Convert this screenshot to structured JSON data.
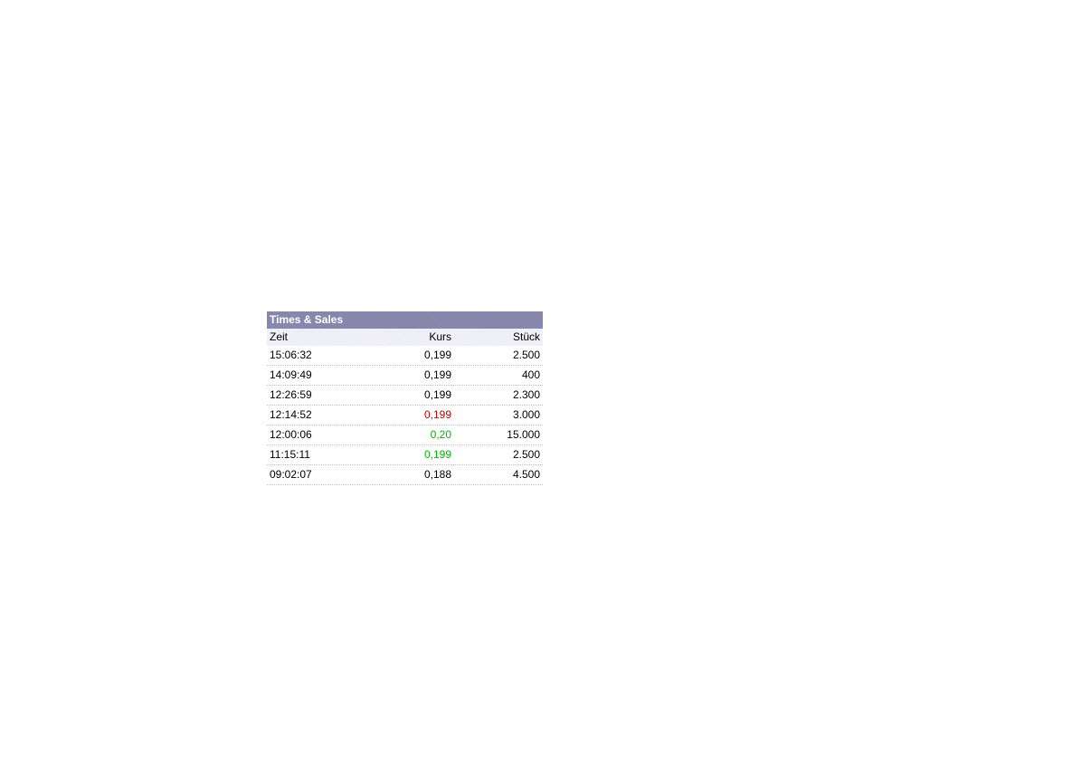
{
  "widget": {
    "title": "Times & Sales",
    "title_bg": "#8080a8",
    "header_bg": "#e8e8f4",
    "columns": [
      "Zeit",
      "Kurs",
      "Stück"
    ],
    "rows": [
      {
        "zeit": "15:06:32",
        "kurs": "0,199",
        "stueck": "2.500",
        "kurs_color": "#000000"
      },
      {
        "zeit": "14:09:49",
        "kurs": "0,199",
        "stueck": "400",
        "kurs_color": "#000000"
      },
      {
        "zeit": "12:26:59",
        "kurs": "0,199",
        "stueck": "2.300",
        "kurs_color": "#000000"
      },
      {
        "zeit": "12:14:52",
        "kurs": "0,199",
        "stueck": "3.000",
        "kurs_color": "#cc0000"
      },
      {
        "zeit": "12:00:06",
        "kurs": "0,20",
        "stueck": "15.000",
        "kurs_color": "#00bb00"
      },
      {
        "zeit": "11:15:11",
        "kurs": "0,199",
        "stueck": "2.500",
        "kurs_color": "#00bb00"
      },
      {
        "zeit": "09:02:07",
        "kurs": "0,188",
        "stueck": "4.500",
        "kurs_color": "#000000"
      }
    ]
  }
}
